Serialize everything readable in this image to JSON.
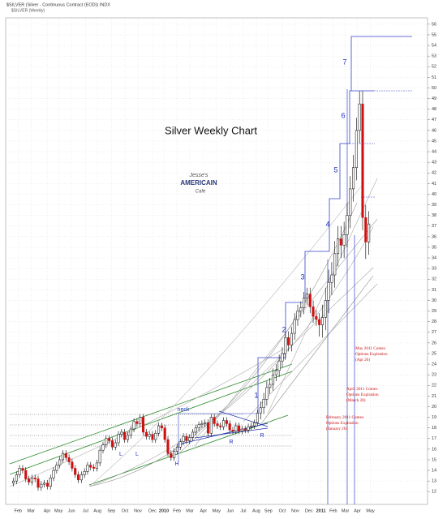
{
  "chart_data": {
    "type": "candlestick",
    "title": "Silver Weekly Chart",
    "header": [
      "$SILVER (Silver - Continuous Contract (EOD)) INDX",
      "$SILVER (Weekly)"
    ],
    "logo": [
      "Jesse's",
      "AMERICAIN",
      "Cafe"
    ],
    "waves": [
      "1",
      "2",
      "3",
      "4",
      "5",
      "6",
      "7"
    ],
    "pattern_labels": [
      "neck",
      "L",
      "L",
      "H",
      "R",
      "R"
    ],
    "expirations": [
      [
        "May 2011 Comex",
        "Options Expiration",
        "(Apr 26)"
      ],
      [
        "April 2011 Comex",
        "Options Expiration",
        "(March 28)"
      ],
      [
        "February 2011 Comex",
        "Options Expiration",
        "(January 26)"
      ]
    ],
    "up_color": "#000000",
    "down_color": "#d01010",
    "grid": true,
    "xlim": [
      -2.5,
      134
    ],
    "ylim": [
      10.8,
      56.6
    ],
    "xticks": [
      {
        "value": 1.5,
        "label": "Feb"
      },
      {
        "value": 5.7,
        "label": "Mar"
      },
      {
        "value": 10.9,
        "label": "Apr"
      },
      {
        "value": 14.6,
        "label": "May"
      },
      {
        "value": 18.8,
        "label": "Jun"
      },
      {
        "value": 23.3,
        "label": "Jul"
      },
      {
        "value": 27.2,
        "label": "Aug"
      },
      {
        "value": 31.7,
        "label": "Sep"
      },
      {
        "value": 36.1,
        "label": "Oct"
      },
      {
        "value": 40.3,
        "label": "Nov"
      },
      {
        "value": 45.0,
        "label": "Dec"
      },
      {
        "value": 48.7,
        "label": "2010"
      },
      {
        "value": 52.9,
        "label": "Feb"
      },
      {
        "value": 57.1,
        "label": "Mar"
      },
      {
        "value": 61.5,
        "label": "Apr"
      },
      {
        "value": 65.7,
        "label": "May"
      },
      {
        "value": 70.2,
        "label": "Jun"
      },
      {
        "value": 74.4,
        "label": "Jul"
      },
      {
        "value": 78.6,
        "label": "Aug"
      },
      {
        "value": 82.5,
        "label": "Sep"
      },
      {
        "value": 87.0,
        "label": "Oct"
      },
      {
        "value": 91.2,
        "label": "Nov"
      },
      {
        "value": 95.6,
        "label": "Dec"
      },
      {
        "value": 99.5,
        "label": "2011"
      },
      {
        "value": 103.5,
        "label": "Feb"
      },
      {
        "value": 107.4,
        "label": "Mar"
      },
      {
        "value": 111.3,
        "label": "Apr"
      },
      {
        "value": 115.5,
        "label": "May"
      }
    ],
    "yticks": [
      12,
      13,
      14,
      15,
      16,
      17,
      18,
      19,
      20,
      21,
      22,
      23,
      24,
      25,
      26,
      27,
      28,
      29,
      30,
      31,
      32,
      33,
      34,
      35,
      36,
      37,
      38,
      39,
      40,
      41,
      42,
      43,
      44,
      45,
      46,
      47,
      48,
      49,
      50,
      51,
      52,
      53,
      54,
      55,
      56
    ],
    "open": [
      12.8,
      13.0,
      13.6,
      14.2,
      14.0,
      13.2,
      12.9,
      13.3,
      13.2,
      12.4,
      12.7,
      12.8,
      12.5,
      13.3,
      14.0,
      14.5,
      15.0,
      15.6,
      15.2,
      14.8,
      14.2,
      13.6,
      13.1,
      13.6,
      13.9,
      14.5,
      14.3,
      14.2,
      14.7,
      15.9,
      16.4,
      17.0,
      16.8,
      16.2,
      16.6,
      17.4,
      17.6,
      16.9,
      17.3,
      17.9,
      18.6,
      18.4,
      19.0,
      17.6,
      17.2,
      17.4,
      16.9,
      17.5,
      18.2,
      18.0,
      16.9,
      15.6,
      15.2,
      15.8,
      16.2,
      16.7,
      17.2,
      16.8,
      17.1,
      17.6,
      18.0,
      18.3,
      18.4,
      18.5,
      17.5,
      19.0,
      18.4,
      18.2,
      18.1,
      18.7,
      18.4,
      17.8,
      17.7,
      18.2,
      17.7,
      17.9,
      17.8,
      18.1,
      18.2,
      18.5,
      19.4,
      19.9,
      20.7,
      21.8,
      22.1,
      23.0,
      23.4,
      24.3,
      25.0,
      26.5,
      25.8,
      26.9,
      28.2,
      29.0,
      29.3,
      30.2,
      30.6,
      29.4,
      28.5,
      28.2,
      27.7,
      28.4,
      30.0,
      31.7,
      32.4,
      34.4,
      35.8,
      35.2,
      36.2,
      38.0,
      40.5,
      42.5,
      46.0,
      48.5,
      37.8,
      35.5
    ],
    "high": [
      13.3,
      13.9,
      14.5,
      14.5,
      14.3,
      13.5,
      13.6,
      13.6,
      13.5,
      13.0,
      13.1,
      13.1,
      13.6,
      14.3,
      14.8,
      15.3,
      15.9,
      15.9,
      15.5,
      15.1,
      14.5,
      13.9,
      13.9,
      14.2,
      14.8,
      14.8,
      14.6,
      15.0,
      16.2,
      16.7,
      17.3,
      17.3,
      17.1,
      16.9,
      17.7,
      17.9,
      17.9,
      17.6,
      18.2,
      18.9,
      18.9,
      19.3,
      19.3,
      17.9,
      17.7,
      17.7,
      17.8,
      18.5,
      18.5,
      18.3,
      17.2,
      15.9,
      16.1,
      16.5,
      17.0,
      17.5,
      17.5,
      17.4,
      17.9,
      18.3,
      18.6,
      18.7,
      18.8,
      18.8,
      19.3,
      19.3,
      18.7,
      18.5,
      19.0,
      19.0,
      18.7,
      18.1,
      18.5,
      18.5,
      18.2,
      18.2,
      18.4,
      18.5,
      18.8,
      19.7,
      20.5,
      21.3,
      22.4,
      22.7,
      23.6,
      24.0,
      24.9,
      25.6,
      27.1,
      27.1,
      27.5,
      28.8,
      29.6,
      29.9,
      30.8,
      31.2,
      31.2,
      30.0,
      29.1,
      28.8,
      29.6,
      31.2,
      32.9,
      33.6,
      35.6,
      37.0,
      37.0,
      37.4,
      39.2,
      41.7,
      43.7,
      47.2,
      49.7,
      49.7,
      39.0,
      38.4
    ],
    "low": [
      12.5,
      12.7,
      13.3,
      13.7,
      12.9,
      12.6,
      12.6,
      12.9,
      12.1,
      12.1,
      12.4,
      12.2,
      12.2,
      13.0,
      13.7,
      14.2,
      14.7,
      14.9,
      14.5,
      13.9,
      13.3,
      12.8,
      12.8,
      13.3,
      13.6,
      14.0,
      13.9,
      13.9,
      14.4,
      15.6,
      16.1,
      16.5,
      15.9,
      15.9,
      16.3,
      17.1,
      16.6,
      16.6,
      17.0,
      17.6,
      18.1,
      18.1,
      17.3,
      16.9,
      16.9,
      16.6,
      16.6,
      17.2,
      17.7,
      16.6,
      15.3,
      14.9,
      14.9,
      15.5,
      15.9,
      16.4,
      16.5,
      16.5,
      16.8,
      17.3,
      17.7,
      18.0,
      18.1,
      17.2,
      17.2,
      18.1,
      17.9,
      17.8,
      17.8,
      18.1,
      17.5,
      17.4,
      17.4,
      17.4,
      17.4,
      17.5,
      17.5,
      17.8,
      17.9,
      18.2,
      18.8,
      19.3,
      20.1,
      21.2,
      21.5,
      22.4,
      22.8,
      23.7,
      24.4,
      25.2,
      25.2,
      26.3,
      27.6,
      28.4,
      28.7,
      29.6,
      28.8,
      27.9,
      27.6,
      26.6,
      26.5,
      27.2,
      28.8,
      30.5,
      31.2,
      33.2,
      34.0,
      34.0,
      35.0,
      36.8,
      39.3,
      41.3,
      44.8,
      36.6,
      33.9,
      34.3
    ],
    "close": [
      13.0,
      13.6,
      14.2,
      14.0,
      13.2,
      12.9,
      13.3,
      13.2,
      12.4,
      12.7,
      12.8,
      12.5,
      13.3,
      14.0,
      14.5,
      15.0,
      15.6,
      15.2,
      14.8,
      14.2,
      13.6,
      13.1,
      13.6,
      13.9,
      14.5,
      14.3,
      14.2,
      14.7,
      15.9,
      16.4,
      17.0,
      16.8,
      16.2,
      16.6,
      17.4,
      17.6,
      16.9,
      17.3,
      17.9,
      18.6,
      18.4,
      19.0,
      17.6,
      17.2,
      17.4,
      16.9,
      17.5,
      18.2,
      18.0,
      16.9,
      15.6,
      15.2,
      15.8,
      16.2,
      16.7,
      17.2,
      16.8,
      17.1,
      17.6,
      18.0,
      18.3,
      18.4,
      18.5,
      17.5,
      19.0,
      18.4,
      18.2,
      18.1,
      18.7,
      18.4,
      17.8,
      17.7,
      18.2,
      17.7,
      17.9,
      17.8,
      18.1,
      18.2,
      18.5,
      19.4,
      19.9,
      20.7,
      21.8,
      22.1,
      23.0,
      23.4,
      24.3,
      25.0,
      26.5,
      25.8,
      26.9,
      28.2,
      29.0,
      29.3,
      30.2,
      30.6,
      29.4,
      28.5,
      28.2,
      27.7,
      28.4,
      30.0,
      31.7,
      32.4,
      34.4,
      35.8,
      35.2,
      36.2,
      38.0,
      40.5,
      42.5,
      46.0,
      48.5,
      37.8,
      35.5,
      37.2
    ]
  }
}
